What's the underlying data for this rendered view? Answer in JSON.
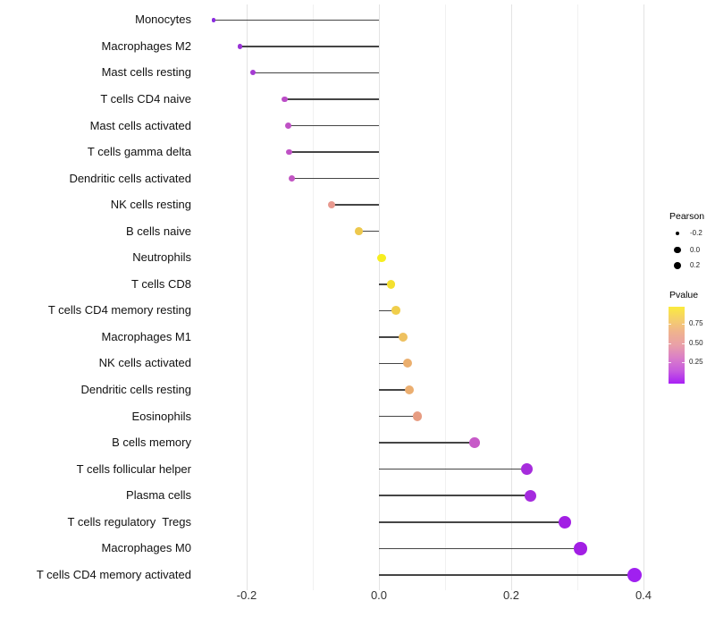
{
  "figure": {
    "x_axis": {
      "ticks": [
        {
          "label": "-0.2",
          "value": -0.2
        },
        {
          "label": "0.0",
          "value": 0.0
        },
        {
          "label": "0.2",
          "value": 0.2
        },
        {
          "label": "0.4",
          "value": 0.4
        }
      ],
      "minor_tick_values": [
        -0.1,
        0.1,
        0.3
      ]
    },
    "legend_pearson": {
      "title": "Pearson",
      "items": [
        {
          "label": "-0.2"
        },
        {
          "label": "0.0"
        },
        {
          "label": "0.2"
        }
      ]
    },
    "legend_pvalue": {
      "title": "Pvalue",
      "tick_labels": [
        "0.75",
        "0.50",
        "0.25"
      ],
      "gradient_top_to_bottom": [
        "#FBEB3D",
        "#F5CF6C",
        "#EFB28F",
        "#E9A0A8",
        "#DA7EC8",
        "#C75BDE",
        "#A820F5"
      ]
    }
  },
  "chart_data": {
    "type": "lollipop",
    "orientation": "horizontal",
    "title": "",
    "xlabel": "",
    "ylabel": "",
    "x_range": [
      -0.28,
      0.42
    ],
    "size_encoding": "Pearson correlation",
    "color_encoding": "Pvalue",
    "rows": [
      {
        "label": "Monocytes",
        "pearson": -0.25,
        "dot_color": "#8B2BE0"
      },
      {
        "label": "Macrophages M2",
        "pearson": -0.21,
        "dot_color": "#9933D6"
      },
      {
        "label": "Mast cells resting",
        "pearson": -0.19,
        "dot_color": "#A53BD2"
      },
      {
        "label": "T cells CD4 naive",
        "pearson": -0.143,
        "dot_color": "#BB4CC7"
      },
      {
        "label": "Mast cells activated",
        "pearson": -0.137,
        "dot_color": "#BF51C5"
      },
      {
        "label": "T cells gamma delta",
        "pearson": -0.136,
        "dot_color": "#BF51C5"
      },
      {
        "label": "Dendritic cells activated",
        "pearson": -0.132,
        "dot_color": "#C256C3"
      },
      {
        "label": "NK cells resting",
        "pearson": -0.072,
        "dot_color": "#E8998F"
      },
      {
        "label": "B cells naive",
        "pearson": -0.03,
        "dot_color": "#EDC84D"
      },
      {
        "label": "Neutrophils",
        "pearson": 0.004,
        "dot_color": "#F7EE20"
      },
      {
        "label": "T cells CD8",
        "pearson": 0.018,
        "dot_color": "#F4E02F"
      },
      {
        "label": "T cells CD4 memory resting",
        "pearson": 0.026,
        "dot_color": "#F0CE4B"
      },
      {
        "label": "Macrophages M1",
        "pearson": 0.036,
        "dot_color": "#EEC160"
      },
      {
        "label": "NK cells activated",
        "pearson": 0.043,
        "dot_color": "#EBAF6E"
      },
      {
        "label": "Dendritic cells resting",
        "pearson": 0.046,
        "dot_color": "#EBAE70"
      },
      {
        "label": "Eosinophils",
        "pearson": 0.058,
        "dot_color": "#E79C82"
      },
      {
        "label": "B cells memory",
        "pearson": 0.145,
        "dot_color": "#C75AC8"
      },
      {
        "label": "T cells follicular helper",
        "pearson": 0.224,
        "dot_color": "#A62CDC"
      },
      {
        "label": "Plasma cells",
        "pearson": 0.229,
        "dot_color": "#A52BDE"
      },
      {
        "label": "T cells regulatory  Tregs",
        "pearson": 0.281,
        "dot_color": "#A21FE4"
      },
      {
        "label": "Macrophages M0",
        "pearson": 0.305,
        "dot_color": "#A21FE4"
      },
      {
        "label": "T cells CD4 memory activated",
        "pearson": 0.386,
        "dot_color": "#A020F0"
      }
    ]
  }
}
